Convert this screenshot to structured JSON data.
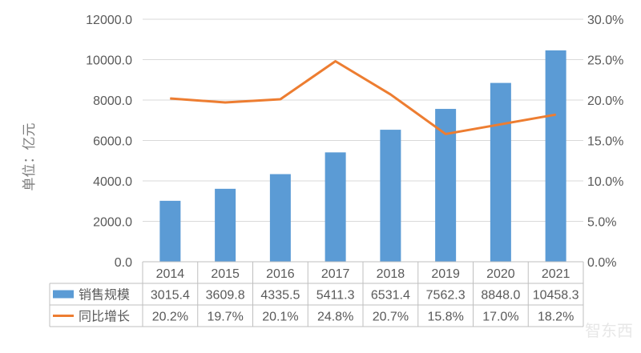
{
  "chart_data": {
    "type": "bar+line",
    "ylabel": "单位：亿元",
    "categories": [
      "2014",
      "2015",
      "2016",
      "2017",
      "2018",
      "2019",
      "2020",
      "2021"
    ],
    "ylim": [
      0,
      12000
    ],
    "y_ticks": [
      "0.0",
      "2000.0",
      "4000.0",
      "6000.0",
      "8000.0",
      "10000.0",
      "12000.0"
    ],
    "y2lim": [
      0,
      30
    ],
    "y2_ticks": [
      "0.0%",
      "5.0%",
      "10.0%",
      "15.0%",
      "20.0%",
      "25.0%",
      "30.0%"
    ],
    "grid": true,
    "legend": "data-table",
    "series": [
      {
        "name": "销售规模",
        "type": "bar",
        "axis": "left",
        "color": "#5B9BD5",
        "values": [
          3015.4,
          3609.8,
          4335.5,
          5411.3,
          6531.4,
          7562.3,
          8848.0,
          10458.3
        ],
        "labels": [
          "3015.4",
          "3609.8",
          "4335.5",
          "5411.3",
          "6531.4",
          "7562.3",
          "8848.0",
          "10458.3"
        ]
      },
      {
        "name": "同比增长",
        "type": "line",
        "axis": "right",
        "color": "#ED7D31",
        "values": [
          20.2,
          19.7,
          20.1,
          24.8,
          20.7,
          15.8,
          17.0,
          18.2
        ],
        "labels": [
          "20.2%",
          "19.7%",
          "20.1%",
          "24.8%",
          "20.7%",
          "15.8%",
          "17.0%",
          "18.2%"
        ]
      }
    ]
  },
  "watermark": "智东西"
}
